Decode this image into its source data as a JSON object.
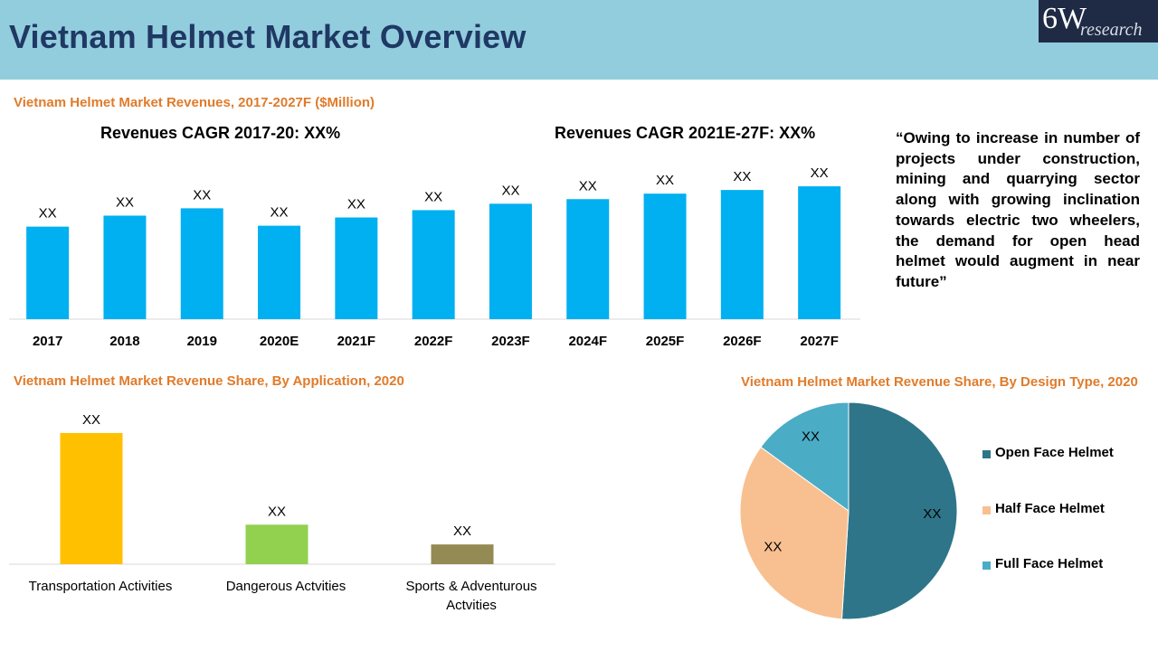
{
  "header": {
    "title": "Vietnam Helmet Market Overview",
    "logo_main": "6W",
    "logo_sub": "research"
  },
  "revenue_section": {
    "title": "Vietnam Helmet Market Revenues, 2017-2027F ($Million)",
    "cagr_1": "Revenues CAGR 2017-20: XX%",
    "cagr_2": "Revenues CAGR 2021E-27F: XX%"
  },
  "quote": "“Owing to increase in number of projects under construction, mining and quarrying sector along with growing inclination towards electric two wheelers, the demand for open head helmet would augment in near future”",
  "application_section": {
    "title": "Vietnam Helmet Market Revenue Share, By Application, 2020"
  },
  "design_section": {
    "title": "Vietnam Helmet Market Revenue Share, By Design Type, 2020"
  },
  "colors": {
    "header_bg": "#92CDDD",
    "title": "#1F3864",
    "section_title": "#E07B2A",
    "revenue_bar": "#00B0F0"
  },
  "chart_data": [
    {
      "id": "revenue",
      "type": "bar",
      "title": "Vietnam Helmet Market Revenues, 2017-2027F ($Million)",
      "categories": [
        "2017",
        "2018",
        "2019",
        "2020E",
        "2021F",
        "2022F",
        "2023F",
        "2024F",
        "2025F",
        "2026F",
        "2027F"
      ],
      "values": [
        101,
        113,
        121,
        102,
        111,
        119,
        126,
        131,
        137,
        141,
        145
      ],
      "data_labels": [
        "XX",
        "XX",
        "XX",
        "XX",
        "XX",
        "XX",
        "XX",
        "XX",
        "XX",
        "XX",
        "XX"
      ],
      "ylim": [
        0,
        150
      ],
      "color": "#00B0F0",
      "grid": false
    },
    {
      "id": "application",
      "type": "bar",
      "title": "Vietnam Helmet Market Revenue Share, By Application, 2020",
      "categories": [
        "Transportation Activities",
        "Dangerous Actvities",
        "Sports & Adventurous Actvities"
      ],
      "category_lines": [
        [
          "Transportation Activities"
        ],
        [
          "Dangerous Actvities"
        ],
        [
          "Sports & Adventurous",
          "Actvities"
        ]
      ],
      "values": [
        73,
        22,
        11
      ],
      "data_labels": [
        "XX",
        "XX",
        "XX"
      ],
      "colors": [
        "#FFC000",
        "#92D050",
        "#948A54"
      ],
      "ylim": [
        0,
        80
      ],
      "grid": false
    },
    {
      "id": "design",
      "type": "pie",
      "title": "Vietnam Helmet Market Revenue Share, By Design Type, 2020",
      "labels": [
        "Open Face Helmet",
        "Half Face Helmet",
        "Full Face Helmet"
      ],
      "values": [
        51,
        34,
        15
      ],
      "data_labels": [
        "XX",
        "XX",
        "XX"
      ],
      "colors": [
        "#2E7589",
        "#F8C090",
        "#4BACC6"
      ],
      "legend": "right"
    }
  ]
}
